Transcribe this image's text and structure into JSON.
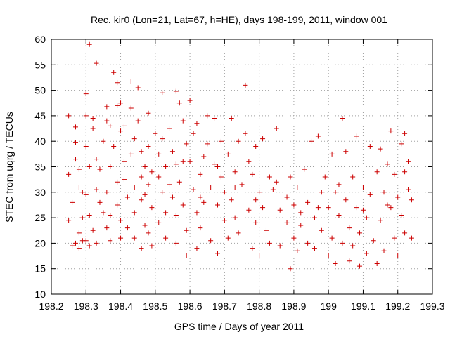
{
  "chart_data": {
    "type": "scatter",
    "title": "Rec. kir0 (Lon=21, Lat=67, h=HE), days 198-199, 2011, window 001",
    "xlabel": "GPS time / Days of year 2011",
    "ylabel": "STEC from uqrg / TECUs",
    "xlim": [
      198.2,
      199.3
    ],
    "ylim": [
      10,
      60
    ],
    "xticks": [
      "198.2",
      "198.3",
      "198.4",
      "198.5",
      "198.6",
      "198.7",
      "198.8",
      "198.9",
      "199",
      "199.1",
      "199.2",
      "199.3"
    ],
    "yticks": [
      "10",
      "15",
      "20",
      "25",
      "30",
      "35",
      "40",
      "45",
      "50",
      "55",
      "60"
    ],
    "grid": true,
    "marker": "plus",
    "color": "#cc0000",
    "series": [
      {
        "points": [
          [
            198.25,
            45.0
          ],
          [
            198.25,
            33.5
          ],
          [
            198.26,
            28.0
          ],
          [
            198.25,
            24.5
          ],
          [
            198.27,
            20.0
          ],
          [
            198.26,
            19.5
          ],
          [
            198.27,
            42.8
          ],
          [
            198.27,
            39.8
          ],
          [
            198.28,
            31.0
          ],
          [
            198.28,
            34.5
          ],
          [
            198.29,
            30.0
          ],
          [
            198.29,
            25.0
          ],
          [
            198.28,
            22.0
          ],
          [
            198.29,
            20.5
          ],
          [
            198.28,
            19.0
          ],
          [
            198.3,
            49.3
          ],
          [
            198.3,
            45.0
          ],
          [
            198.3,
            39.0
          ],
          [
            198.31,
            35.0
          ],
          [
            198.3,
            29.5
          ],
          [
            198.31,
            25.5
          ],
          [
            198.3,
            20.5
          ],
          [
            198.31,
            19.5
          ],
          [
            198.31,
            59.0
          ],
          [
            198.32,
            42.5
          ],
          [
            198.32,
            44.5
          ],
          [
            198.33,
            55.3
          ],
          [
            198.33,
            36.5
          ],
          [
            198.33,
            30.5
          ],
          [
            198.32,
            22.5
          ],
          [
            198.33,
            20.0
          ],
          [
            198.34,
            34.5
          ],
          [
            198.35,
            40.0
          ],
          [
            198.35,
            26.0
          ],
          [
            198.36,
            46.8
          ],
          [
            198.36,
            44.0
          ],
          [
            198.37,
            43.0
          ],
          [
            198.37,
            35.0
          ],
          [
            198.36,
            30.0
          ],
          [
            198.37,
            25.5
          ],
          [
            198.36,
            23.0
          ],
          [
            198.37,
            20.5
          ],
          [
            198.38,
            53.5
          ],
          [
            198.38,
            39.0
          ],
          [
            198.39,
            51.5
          ],
          [
            198.39,
            47.0
          ],
          [
            198.39,
            32.0
          ],
          [
            198.4,
            47.5
          ],
          [
            198.4,
            42.0
          ],
          [
            198.39,
            27.5
          ],
          [
            198.4,
            24.5
          ],
          [
            198.4,
            21.0
          ],
          [
            198.41,
            43.0
          ],
          [
            198.41,
            36.0
          ],
          [
            198.42,
            29.0
          ],
          [
            198.42,
            23.0
          ],
          [
            198.43,
            51.8
          ],
          [
            198.43,
            46.5
          ],
          [
            198.43,
            37.5
          ],
          [
            198.44,
            40.5
          ],
          [
            198.44,
            31.0
          ],
          [
            198.44,
            26.0
          ],
          [
            198.44,
            21.0
          ],
          [
            198.45,
            50.5
          ],
          [
            198.45,
            44.0
          ],
          [
            198.46,
            38.0
          ],
          [
            198.46,
            33.0
          ],
          [
            198.46,
            28.5
          ],
          [
            198.46,
            19.0
          ],
          [
            198.47,
            35.0
          ],
          [
            198.47,
            29.5
          ],
          [
            198.48,
            45.5
          ],
          [
            198.48,
            39.0
          ],
          [
            198.48,
            31.5
          ],
          [
            198.49,
            34.0
          ],
          [
            198.49,
            27.0
          ],
          [
            198.48,
            22.0
          ],
          [
            198.49,
            19.5
          ],
          [
            198.5,
            41.5
          ],
          [
            198.51,
            37.5
          ],
          [
            198.51,
            33.0
          ],
          [
            198.51,
            24.0
          ],
          [
            198.52,
            49.5
          ],
          [
            198.52,
            40.5
          ],
          [
            198.52,
            30.0
          ],
          [
            198.53,
            35.0
          ],
          [
            198.53,
            26.0
          ],
          [
            198.53,
            21.0
          ],
          [
            198.54,
            42.5
          ],
          [
            198.55,
            38.0
          ],
          [
            198.55,
            29.0
          ],
          [
            198.56,
            49.8
          ],
          [
            198.56,
            35.5
          ],
          [
            198.56,
            25.5
          ],
          [
            198.56,
            20.0
          ],
          [
            198.57,
            47.5
          ],
          [
            198.57,
            32.0
          ],
          [
            198.58,
            44.0
          ],
          [
            198.58,
            27.5
          ],
          [
            198.59,
            39.5
          ],
          [
            198.59,
            22.5
          ],
          [
            198.59,
            17.5
          ],
          [
            198.6,
            48.0
          ],
          [
            198.6,
            36.0
          ],
          [
            198.61,
            41.5
          ],
          [
            198.61,
            30.5
          ],
          [
            198.62,
            43.5
          ],
          [
            198.62,
            26.0
          ],
          [
            198.62,
            19.0
          ],
          [
            198.63,
            33.5
          ],
          [
            198.63,
            23.0
          ],
          [
            198.64,
            37.0
          ],
          [
            198.64,
            28.0
          ],
          [
            198.65,
            45.0
          ],
          [
            198.65,
            39.5
          ],
          [
            198.66,
            31.0
          ],
          [
            198.66,
            20.5
          ],
          [
            198.67,
            44.5
          ],
          [
            198.67,
            35.5
          ],
          [
            198.68,
            27.5
          ],
          [
            198.68,
            18.0
          ],
          [
            198.69,
            40.0
          ],
          [
            198.69,
            33.0
          ],
          [
            198.7,
            24.5
          ],
          [
            198.7,
            30.0
          ],
          [
            198.71,
            37.5
          ],
          [
            198.71,
            21.0
          ],
          [
            198.72,
            44.5
          ],
          [
            198.72,
            28.5
          ],
          [
            198.73,
            34.0
          ],
          [
            198.73,
            25.0
          ],
          [
            198.74,
            40.0
          ],
          [
            198.74,
            22.0
          ],
          [
            198.75,
            31.5
          ],
          [
            198.76,
            51.0
          ],
          [
            198.76,
            41.5
          ],
          [
            198.77,
            36.0
          ],
          [
            198.77,
            26.5
          ],
          [
            198.78,
            33.5
          ],
          [
            198.78,
            19.0
          ],
          [
            198.79,
            39.0
          ],
          [
            198.79,
            24.0
          ],
          [
            198.8,
            30.0
          ],
          [
            198.8,
            17.5
          ],
          [
            198.81,
            40.5
          ],
          [
            198.81,
            27.0
          ],
          [
            198.82,
            22.5
          ],
          [
            198.83,
            33.0
          ],
          [
            198.83,
            20.0
          ],
          [
            198.85,
            42.5
          ],
          [
            198.85,
            32.0
          ],
          [
            198.86,
            26.5
          ],
          [
            198.86,
            19.5
          ],
          [
            198.88,
            29.0
          ],
          [
            198.88,
            24.0
          ],
          [
            198.89,
            33.0
          ],
          [
            198.89,
            15.0
          ],
          [
            198.9,
            27.5
          ],
          [
            198.9,
            21.0
          ],
          [
            198.91,
            31.0
          ],
          [
            198.91,
            18.5
          ],
          [
            198.92,
            23.5
          ],
          [
            198.93,
            34.5
          ],
          [
            198.94,
            28.0
          ],
          [
            198.94,
            20.0
          ],
          [
            198.95,
            40.0
          ],
          [
            198.96,
            25.0
          ],
          [
            198.96,
            19.0
          ],
          [
            198.97,
            41.0
          ],
          [
            198.98,
            30.0
          ],
          [
            198.98,
            22.5
          ],
          [
            198.99,
            33.0
          ],
          [
            199.0,
            27.0
          ],
          [
            199.0,
            17.5
          ],
          [
            199.01,
            37.5
          ],
          [
            199.01,
            21.0
          ],
          [
            199.02,
            30.0
          ],
          [
            199.02,
            16.0
          ],
          [
            199.03,
            25.5
          ],
          [
            199.04,
            44.5
          ],
          [
            199.04,
            20.0
          ],
          [
            199.05,
            38.0
          ],
          [
            199.05,
            28.5
          ],
          [
            199.06,
            23.0
          ],
          [
            199.06,
            16.5
          ],
          [
            199.07,
            33.0
          ],
          [
            199.07,
            19.5
          ],
          [
            199.08,
            41.0
          ],
          [
            199.08,
            27.0
          ],
          [
            199.09,
            22.0
          ],
          [
            199.09,
            15.5
          ],
          [
            199.1,
            31.0
          ],
          [
            199.11,
            25.0
          ],
          [
            199.11,
            18.0
          ],
          [
            199.12,
            39.0
          ],
          [
            199.12,
            29.5
          ],
          [
            199.13,
            20.5
          ],
          [
            199.14,
            34.0
          ],
          [
            199.14,
            16.0
          ],
          [
            199.15,
            38.5
          ],
          [
            199.15,
            24.5
          ],
          [
            199.16,
            30.0
          ],
          [
            199.16,
            18.5
          ],
          [
            199.17,
            35.5
          ],
          [
            199.18,
            42.0
          ],
          [
            199.18,
            27.0
          ],
          [
            199.19,
            21.0
          ],
          [
            199.19,
            33.5
          ],
          [
            199.2,
            29.0
          ],
          [
            199.2,
            17.5
          ],
          [
            199.21,
            39.5
          ],
          [
            199.21,
            25.5
          ],
          [
            199.22,
            41.5
          ],
          [
            199.22,
            22.0
          ],
          [
            199.23,
            36.0
          ],
          [
            199.23,
            30.5
          ],
          [
            199.24,
            28.5
          ],
          [
            199.24,
            21.0
          ],
          [
            198.27,
            36.5
          ],
          [
            198.34,
            28.0
          ],
          [
            198.41,
            32.5
          ],
          [
            198.47,
            23.5
          ],
          [
            198.54,
            31.5
          ],
          [
            198.58,
            36.0
          ],
          [
            198.63,
            29.0
          ],
          [
            198.68,
            35.0
          ],
          [
            198.73,
            31.0
          ],
          [
            198.79,
            28.5
          ],
          [
            198.84,
            30.5
          ],
          [
            198.92,
            26.0
          ],
          [
            198.97,
            27.0
          ],
          [
            199.03,
            31.5
          ],
          [
            199.1,
            26.5
          ],
          [
            199.17,
            27.5
          ],
          [
            199.22,
            34.0
          ]
        ]
      }
    ]
  }
}
